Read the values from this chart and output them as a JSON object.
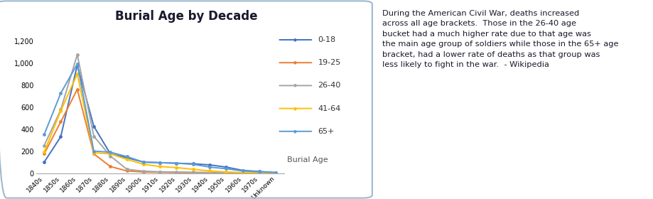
{
  "title": "Burial Age by Decade",
  "xlabel": "Burial Age",
  "categories": [
    "1840s",
    "1850s",
    "1860s",
    "1870s",
    "1880s",
    "1890s",
    "1900s",
    "1910s",
    "1920s",
    "1930s",
    "1940s",
    "1950s",
    "1960s",
    "1970s",
    "Unknown"
  ],
  "series": {
    "0-18": [
      100,
      330,
      980,
      425,
      175,
      140,
      100,
      95,
      90,
      85,
      75,
      55,
      25,
      15,
      5
    ],
    "19-25": [
      175,
      465,
      760,
      175,
      60,
      20,
      10,
      8,
      5,
      5,
      5,
      3,
      2,
      1,
      1
    ],
    "26-40": [
      250,
      575,
      1075,
      335,
      155,
      35,
      18,
      12,
      10,
      8,
      5,
      3,
      2,
      1,
      1
    ],
    "41-64": [
      190,
      565,
      900,
      185,
      175,
      125,
      80,
      60,
      50,
      35,
      20,
      10,
      5,
      3,
      2
    ],
    "65+": [
      350,
      725,
      990,
      200,
      190,
      150,
      100,
      95,
      90,
      80,
      55,
      40,
      20,
      12,
      5
    ]
  },
  "colors": {
    "0-18": "#4472C4",
    "19-25": "#ED7D31",
    "26-40": "#A5A5A5",
    "41-64": "#FFC000",
    "65+": "#5B9BD5"
  },
  "ylim": [
    0,
    1300
  ],
  "yticks": [
    0,
    200,
    400,
    600,
    800,
    1000,
    1200
  ],
  "annotation_text": "During the American Civil War, deaths increased\nacross all age brackets.  Those in the 26-40 age\nbucket had a much higher rate due to that age was\nthe main age group of soldiers while those in the 65+ age\nbracket, had a lower rate of deaths as that group was\nless likely to fight in the war.  - Wikipedia",
  "box_color": "#A0B8CC",
  "title_fontsize": 12,
  "axis_fontsize": 7,
  "legend_fontsize": 8
}
